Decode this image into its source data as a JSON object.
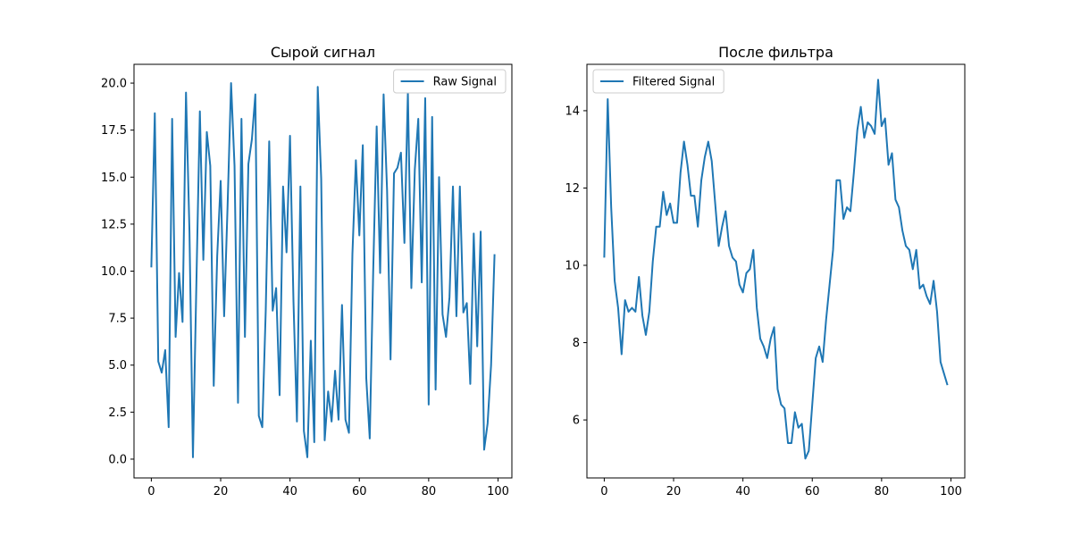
{
  "chart_data": [
    {
      "type": "line",
      "title": "Сырой сигнал",
      "xlabel": "",
      "ylabel": "",
      "xlim": [
        -5,
        104
      ],
      "ylim": [
        -1,
        21
      ],
      "xticks": [
        0,
        20,
        40,
        60,
        80,
        100
      ],
      "xtick_labels": [
        "0",
        "20",
        "40",
        "60",
        "80",
        "100"
      ],
      "yticks": [
        0,
        2.5,
        5,
        7.5,
        10,
        12.5,
        15,
        17.5,
        20
      ],
      "ytick_labels": [
        "0.0",
        "2.5",
        "5.0",
        "7.5",
        "10.0",
        "12.5",
        "15.0",
        "17.5",
        "20.0"
      ],
      "legend_position": "top-right",
      "grid": false,
      "series": [
        {
          "name": "Raw Signal",
          "color": "#1f77b4",
          "x": [
            0,
            1,
            2,
            3,
            4,
            5,
            6,
            7,
            8,
            9,
            10,
            11,
            12,
            13,
            14,
            15,
            16,
            17,
            18,
            19,
            20,
            21,
            22,
            23,
            24,
            25,
            26,
            27,
            28,
            29,
            30,
            31,
            32,
            33,
            34,
            35,
            36,
            37,
            38,
            39,
            40,
            41,
            42,
            43,
            44,
            45,
            46,
            47,
            48,
            49,
            50,
            51,
            52,
            53,
            54,
            55,
            56,
            57,
            58,
            59,
            60,
            61,
            62,
            63,
            64,
            65,
            66,
            67,
            68,
            69,
            70,
            71,
            72,
            73,
            74,
            75,
            76,
            77,
            78,
            79,
            80,
            81,
            82,
            83,
            84,
            85,
            86,
            87,
            88,
            89,
            90,
            91,
            92,
            93,
            94,
            95,
            96,
            97,
            98,
            99
          ],
          "values": [
            10.2,
            18.4,
            5.2,
            4.6,
            5.8,
            1.7,
            18.1,
            6.5,
            9.9,
            7.3,
            19.5,
            12.1,
            0.1,
            9.4,
            18.5,
            10.6,
            17.4,
            15.6,
            3.9,
            10.8,
            14.8,
            7.6,
            13.5,
            20.0,
            15.6,
            3.0,
            18.1,
            6.5,
            15.7,
            17.0,
            19.4,
            2.3,
            1.7,
            7.9,
            16.9,
            7.9,
            9.1,
            3.4,
            14.5,
            11.0,
            17.2,
            8.4,
            2.0,
            14.5,
            1.5,
            0.1,
            6.3,
            0.9,
            19.8,
            14.9,
            1.0,
            3.6,
            2.0,
            4.7,
            2.1,
            8.2,
            2.1,
            1.4,
            10.9,
            15.9,
            11.9,
            16.7,
            4.3,
            1.1,
            10.0,
            17.7,
            9.9,
            19.4,
            14.3,
            5.3,
            15.2,
            15.5,
            16.3,
            11.5,
            19.5,
            9.1,
            15.4,
            18.1,
            9.4,
            19.2,
            2.9,
            18.2,
            3.7,
            15.0,
            7.7,
            6.5,
            8.6,
            14.5,
            7.6,
            14.5,
            7.8,
            8.3,
            4.0,
            12.0,
            6.0,
            12.1,
            0.5,
            1.9,
            5.0,
            10.9
          ]
        }
      ]
    },
    {
      "type": "line",
      "title": "После фильтра",
      "xlabel": "",
      "ylabel": "",
      "xlim": [
        -5,
        104
      ],
      "ylim": [
        4.5,
        15.2
      ],
      "xticks": [
        0,
        20,
        40,
        60,
        80,
        100
      ],
      "xtick_labels": [
        "0",
        "20",
        "40",
        "60",
        "80",
        "100"
      ],
      "yticks": [
        6,
        8,
        10,
        12,
        14
      ],
      "ytick_labels": [
        "6",
        "8",
        "10",
        "12",
        "14"
      ],
      "legend_position": "top-left",
      "grid": false,
      "series": [
        {
          "name": "Filtered Signal",
          "color": "#1f77b4",
          "x": [
            0,
            1,
            2,
            3,
            4,
            5,
            6,
            7,
            8,
            9,
            10,
            11,
            12,
            13,
            14,
            15,
            16,
            17,
            18,
            19,
            20,
            21,
            22,
            23,
            24,
            25,
            26,
            27,
            28,
            29,
            30,
            31,
            32,
            33,
            34,
            35,
            36,
            37,
            38,
            39,
            40,
            41,
            42,
            43,
            44,
            45,
            46,
            47,
            48,
            49,
            50,
            51,
            52,
            53,
            54,
            55,
            56,
            57,
            58,
            59,
            60,
            61,
            62,
            63,
            64,
            65,
            66,
            67,
            68,
            69,
            70,
            71,
            72,
            73,
            74,
            75,
            76,
            77,
            78,
            79,
            80,
            81,
            82,
            83,
            84,
            85,
            86,
            87,
            88,
            89,
            90,
            91,
            92,
            93,
            94,
            95,
            96,
            97,
            98,
            99
          ],
          "values": [
            10.2,
            14.3,
            11.5,
            9.6,
            8.9,
            7.7,
            9.1,
            8.8,
            8.9,
            8.8,
            9.7,
            8.7,
            8.2,
            8.8,
            10.1,
            11.0,
            11.0,
            11.9,
            11.3,
            11.6,
            11.1,
            11.1,
            12.4,
            13.2,
            12.6,
            11.8,
            11.8,
            11.0,
            12.2,
            12.8,
            13.2,
            12.7,
            11.6,
            10.5,
            11.0,
            11.4,
            10.5,
            10.2,
            10.1,
            9.5,
            9.3,
            9.8,
            9.9,
            10.4,
            8.9,
            8.1,
            7.9,
            7.6,
            8.1,
            8.4,
            6.8,
            6.4,
            6.3,
            5.4,
            5.4,
            6.2,
            5.8,
            5.9,
            5.0,
            5.2,
            6.4,
            7.6,
            7.9,
            7.5,
            8.6,
            9.5,
            10.4,
            12.2,
            12.2,
            11.2,
            11.5,
            11.4,
            12.4,
            13.5,
            14.1,
            13.3,
            13.7,
            13.6,
            13.4,
            14.8,
            13.6,
            13.8,
            12.6,
            12.9,
            11.7,
            11.5,
            10.9,
            10.5,
            10.4,
            9.9,
            10.4,
            9.4,
            9.5,
            9.2,
            9.0,
            9.6,
            8.8,
            7.5,
            7.2,
            6.9
          ]
        }
      ]
    }
  ]
}
